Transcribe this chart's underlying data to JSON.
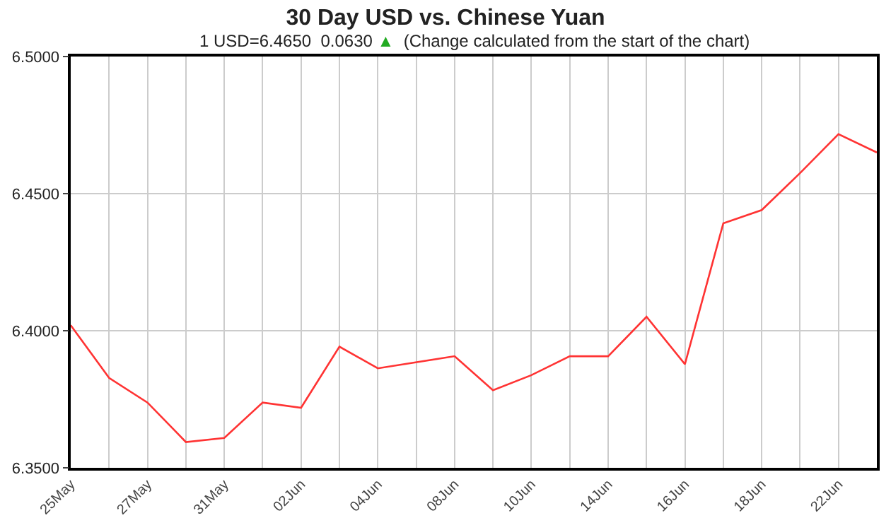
{
  "chart_data": {
    "type": "line",
    "title": "30 Day USD vs. Chinese Yuan",
    "subtitle": "1 USD=6.4650  0.0630 ▲  (Change calculated from the start of the chart)",
    "categories": [
      "25May",
      null,
      "27May",
      null,
      "31May",
      null,
      "02Jun",
      null,
      "04Jun",
      null,
      "08Jun",
      null,
      "10Jun",
      null,
      "14Jun",
      null,
      "16Jun",
      null,
      "18Jun",
      null,
      "22Jun",
      null
    ],
    "series": [
      {
        "color": "#ff3333",
        "values": [
          6.402,
          6.3828,
          6.3738,
          6.3594,
          6.3609,
          6.3738,
          6.3719,
          6.3942,
          6.3863,
          6.3885,
          6.3907,
          6.3783,
          6.3838,
          6.3907,
          6.3907,
          6.4051,
          6.3878,
          6.4392,
          6.444,
          6.4575,
          6.4717,
          6.465
        ]
      }
    ],
    "ylim": [
      6.35,
      6.5
    ],
    "yticks": [
      {
        "value": 6.35,
        "label": "6.3500"
      },
      {
        "value": 6.4,
        "label": "6.4000"
      },
      {
        "value": 6.45,
        "label": "6.4500"
      },
      {
        "value": 6.5,
        "label": "6.5000"
      }
    ],
    "grid": true,
    "legend": false,
    "marker": "none",
    "line_style": "solid"
  }
}
